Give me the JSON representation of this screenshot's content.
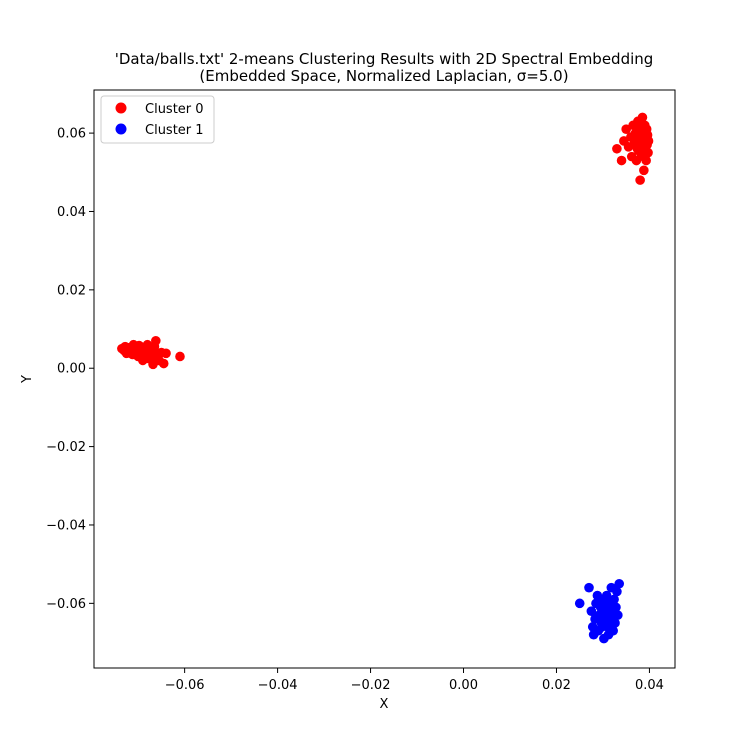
{
  "chart_data": {
    "type": "scatter",
    "title": "'Data/balls.txt' 2-means Clustering Results with 2D Spectral Embedding",
    "subtitle": "(Embedded Space, Normalized Laplacian, σ=5.0)",
    "xlabel": "X",
    "ylabel": "Y",
    "xlim": [
      -0.0795,
      0.0455
    ],
    "ylim": [
      -0.0765,
      0.071
    ],
    "xticks": [
      -0.06,
      -0.04,
      -0.02,
      0.0,
      0.02,
      0.04
    ],
    "xtick_labels": [
      "−0.06",
      "−0.04",
      "−0.02",
      "0.00",
      "0.02",
      "0.04"
    ],
    "yticks": [
      -0.06,
      -0.04,
      -0.02,
      0.0,
      0.02,
      0.04,
      0.06
    ],
    "ytick_labels": [
      "−0.06",
      "−0.04",
      "−0.02",
      "0.00",
      "0.02",
      "0.04",
      "0.06"
    ],
    "grid": false,
    "legend_position": "top-left",
    "series": [
      {
        "name": "Cluster 0",
        "color": "#ff0000",
        "points": [
          [
            -0.0735,
            0.005
          ],
          [
            -0.073,
            0.0045
          ],
          [
            -0.0728,
            0.0055
          ],
          [
            -0.0722,
            0.004
          ],
          [
            -0.072,
            0.0052
          ],
          [
            -0.0715,
            0.0048
          ],
          [
            -0.0712,
            0.0035
          ],
          [
            -0.0708,
            0.0055
          ],
          [
            -0.0705,
            0.0045
          ],
          [
            -0.07,
            0.003
          ],
          [
            -0.0698,
            0.0058
          ],
          [
            -0.0695,
            0.0042
          ],
          [
            -0.069,
            0.002
          ],
          [
            -0.0688,
            0.005
          ],
          [
            -0.0685,
            0.0035
          ],
          [
            -0.068,
            0.006
          ],
          [
            -0.0678,
            0.0025
          ],
          [
            -0.0675,
            0.0045
          ],
          [
            -0.067,
            0.003
          ],
          [
            -0.0668,
            0.001
          ],
          [
            -0.0665,
            0.0055
          ],
          [
            -0.0662,
            0.007
          ],
          [
            -0.066,
            0.0035
          ],
          [
            -0.0655,
            0.002
          ],
          [
            -0.065,
            0.004
          ],
          [
            -0.0645,
            0.0012
          ],
          [
            -0.064,
            0.0038
          ],
          [
            -0.061,
            0.003
          ],
          [
            -0.0725,
            0.0038
          ],
          [
            -0.071,
            0.006
          ],
          [
            -0.0695,
            0.0052
          ],
          [
            -0.0682,
            0.0042
          ],
          [
            0.033,
            0.056
          ],
          [
            0.034,
            0.053
          ],
          [
            0.0345,
            0.058
          ],
          [
            0.035,
            0.061
          ],
          [
            0.0355,
            0.0565
          ],
          [
            0.036,
            0.059
          ],
          [
            0.0362,
            0.054
          ],
          [
            0.0365,
            0.062
          ],
          [
            0.0368,
            0.0575
          ],
          [
            0.037,
            0.06
          ],
          [
            0.0372,
            0.053
          ],
          [
            0.0375,
            0.063
          ],
          [
            0.0377,
            0.0555
          ],
          [
            0.0378,
            0.059
          ],
          [
            0.038,
            0.048
          ],
          [
            0.0382,
            0.061
          ],
          [
            0.0383,
            0.0545
          ],
          [
            0.0385,
            0.064
          ],
          [
            0.0386,
            0.0575
          ],
          [
            0.0388,
            0.0505
          ],
          [
            0.0389,
            0.06
          ],
          [
            0.039,
            0.062
          ],
          [
            0.0391,
            0.056
          ],
          [
            0.0392,
            0.0585
          ],
          [
            0.0393,
            0.053
          ],
          [
            0.0394,
            0.061
          ],
          [
            0.0395,
            0.057
          ],
          [
            0.0396,
            0.0595
          ],
          [
            0.0397,
            0.055
          ],
          [
            0.0398,
            0.058
          ],
          [
            0.0374,
            0.056
          ],
          [
            0.0387,
            0.054
          ]
        ]
      },
      {
        "name": "Cluster 1",
        "color": "#0000ff",
        "points": [
          [
            0.025,
            -0.06
          ],
          [
            0.027,
            -0.056
          ],
          [
            0.0275,
            -0.062
          ],
          [
            0.0278,
            -0.066
          ],
          [
            0.028,
            -0.068
          ],
          [
            0.0283,
            -0.064
          ],
          [
            0.0285,
            -0.06
          ],
          [
            0.0288,
            -0.058
          ],
          [
            0.029,
            -0.067
          ],
          [
            0.0292,
            -0.063
          ],
          [
            0.0295,
            -0.061
          ],
          [
            0.0297,
            -0.065
          ],
          [
            0.03,
            -0.059
          ],
          [
            0.0302,
            -0.069
          ],
          [
            0.0304,
            -0.064
          ],
          [
            0.0306,
            -0.062
          ],
          [
            0.0308,
            -0.058
          ],
          [
            0.031,
            -0.066
          ],
          [
            0.0312,
            -0.068
          ],
          [
            0.0314,
            -0.06
          ],
          [
            0.0316,
            -0.064
          ],
          [
            0.0318,
            -0.056
          ],
          [
            0.032,
            -0.062
          ],
          [
            0.0322,
            -0.067
          ],
          [
            0.0324,
            -0.059
          ],
          [
            0.0326,
            -0.065
          ],
          [
            0.0328,
            -0.061
          ],
          [
            0.033,
            -0.057
          ],
          [
            0.0332,
            -0.063
          ],
          [
            0.0335,
            -0.055
          ],
          [
            0.0298,
            -0.066
          ],
          [
            0.0309,
            -0.061
          ]
        ]
      }
    ]
  }
}
